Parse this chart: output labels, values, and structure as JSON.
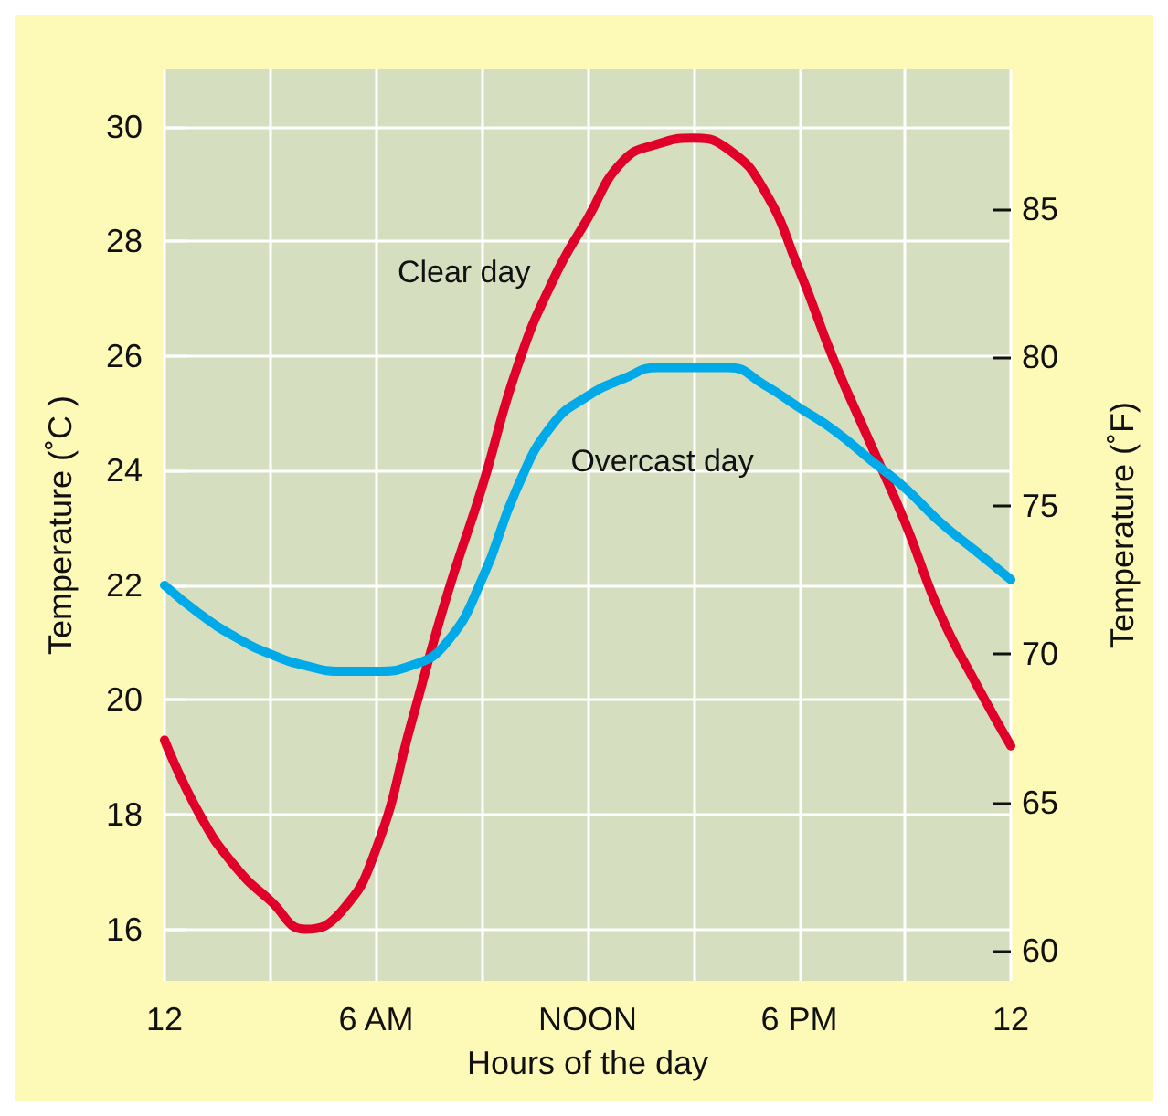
{
  "chart_data": {
    "type": "line",
    "xlabel": "Hours of the day",
    "ylabel": "Temperature (˚C )",
    "y2label": "Temperature (˚F)",
    "categories": [
      "12",
      null,
      null,
      null,
      null,
      null,
      "6 AM",
      null,
      null,
      null,
      null,
      null,
      "NOON",
      null,
      null,
      null,
      null,
      null,
      "6 PM",
      null,
      null,
      null,
      null,
      null,
      "12"
    ],
    "ylim": [
      15.1,
      31
    ],
    "yticks": [
      16,
      18,
      20,
      22,
      24,
      26,
      28,
      30
    ],
    "y2lim": [
      59,
      89.7
    ],
    "y2ticks": [
      60,
      65,
      70,
      75,
      80,
      85
    ],
    "grid": true,
    "legend": false,
    "marker": "none",
    "line_style": "solid",
    "series": [
      {
        "name": "Clear day",
        "color": "#e0002a",
        "values": [
          19.3,
          18,
          17.1,
          16.5,
          16,
          16.3,
          17.4,
          19.6,
          21.8,
          23.7,
          25.8,
          27.3,
          28.4,
          29.4,
          29.7,
          29.8,
          29.6,
          28.9,
          27.5,
          25.9,
          24.5,
          23.1,
          21.5,
          20.3,
          19.2
        ]
      },
      {
        "name": "Overcast day",
        "color": "#00a9e8",
        "values": [
          22,
          21.5,
          21.1,
          20.8,
          20.6,
          20.5,
          20.5,
          20.6,
          21,
          22.1,
          23.7,
          24.8,
          25.3,
          25.6,
          25.8,
          25.8,
          25.8,
          25.5,
          25.1,
          24.7,
          24.2,
          23.7,
          23.1,
          22.6,
          22.1
        ]
      }
    ]
  }
}
